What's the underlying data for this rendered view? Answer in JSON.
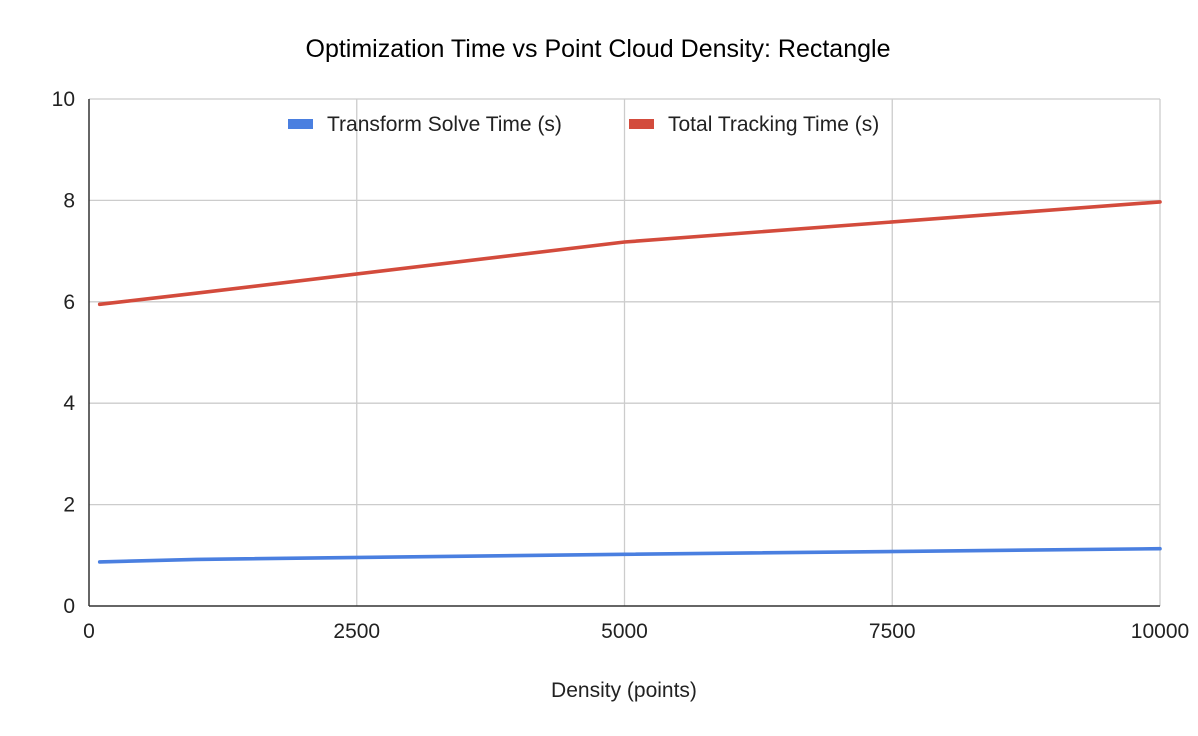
{
  "chart_data": {
    "type": "line",
    "title": "Optimization Time vs Point Cloud Density: Rectangle",
    "xlabel": "Density (points)",
    "ylabel": "",
    "xlim": [
      0,
      10000
    ],
    "ylim": [
      0,
      10
    ],
    "x_ticks": [
      0,
      2500,
      5000,
      7500,
      10000
    ],
    "y_ticks": [
      0,
      2,
      4,
      6,
      8,
      10
    ],
    "x_tick_labels": [
      "0",
      "2500",
      "5000",
      "7500",
      "10000"
    ],
    "y_tick_labels": [
      "0",
      "2",
      "4",
      "6",
      "8",
      "10"
    ],
    "grid": true,
    "legend_position": "top",
    "series": [
      {
        "name": "Transform Solve Time (s)",
        "color": "#4a7fe0",
        "x": [
          100,
          1000,
          5000,
          10000
        ],
        "y": [
          0.87,
          0.92,
          1.02,
          1.13
        ]
      },
      {
        "name": "Total Tracking Time (s)",
        "color": "#d34b3c",
        "x": [
          100,
          1000,
          5000,
          10000
        ],
        "y": [
          5.95,
          6.17,
          7.18,
          7.97
        ]
      }
    ]
  }
}
